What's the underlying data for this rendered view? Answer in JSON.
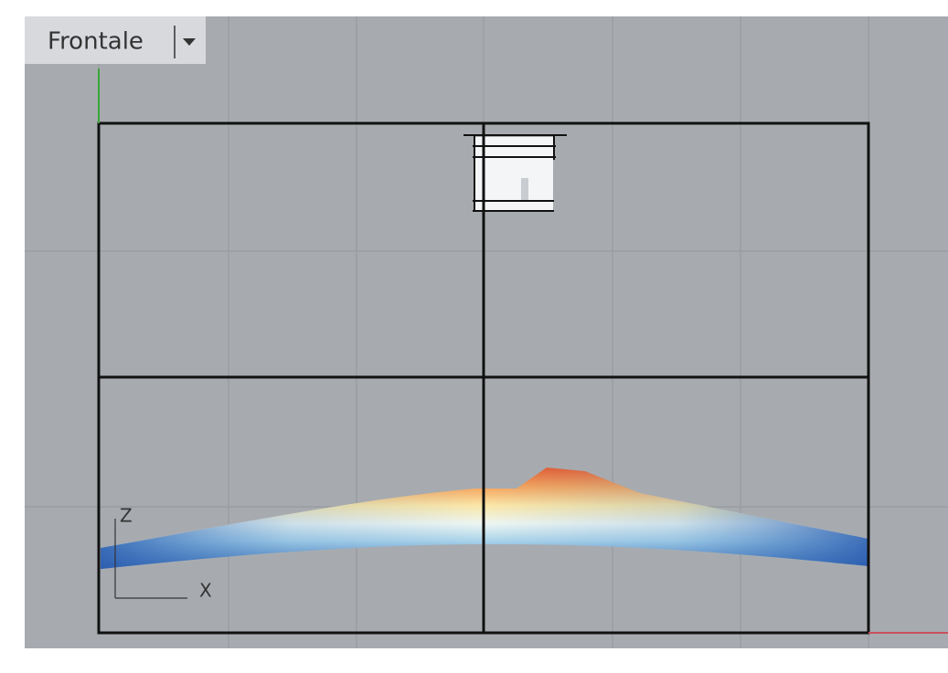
{
  "viewport": {
    "title": "Frontale"
  },
  "axes": {
    "z": "Z",
    "x": "X"
  }
}
